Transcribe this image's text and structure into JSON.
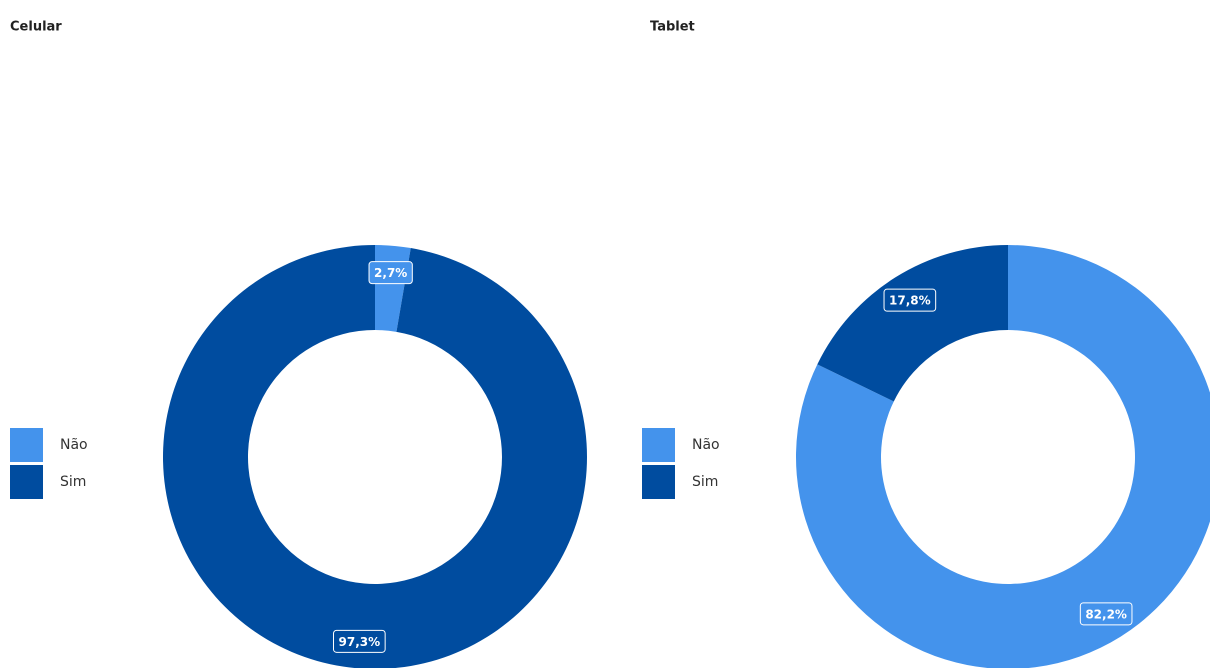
{
  "chart_data": [
    {
      "type": "donut",
      "title": "Celular",
      "categories": [
        "Não",
        "Sim"
      ],
      "values": [
        2.7,
        97.3
      ],
      "value_labels": [
        "2,7%",
        "97,3%"
      ],
      "colors": [
        "#4493ec",
        "#004c9f"
      ]
    },
    {
      "type": "donut",
      "title": "Tablet",
      "categories": [
        "Não",
        "Sim"
      ],
      "values": [
        82.2,
        17.8
      ],
      "value_labels": [
        "82,2%",
        "17,8%"
      ],
      "colors": [
        "#4493ec",
        "#004c9f"
      ]
    }
  ]
}
